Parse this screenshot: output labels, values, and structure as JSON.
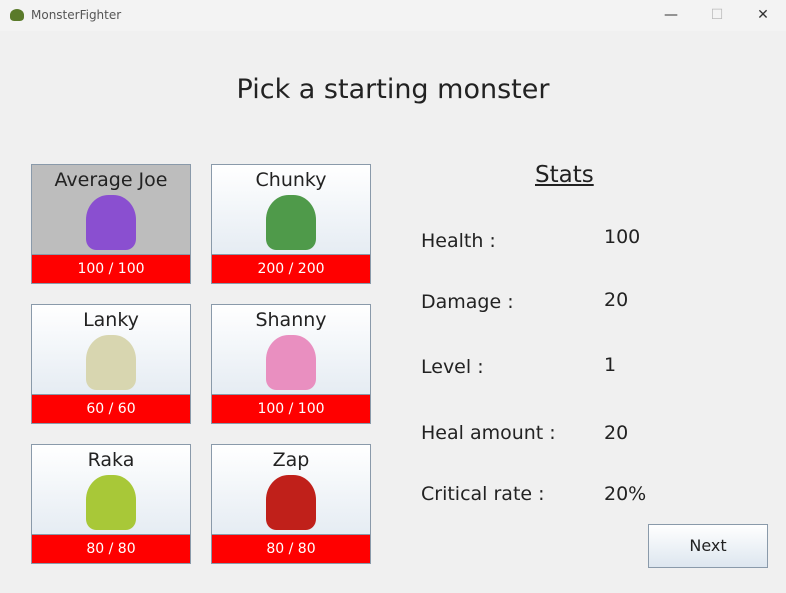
{
  "window": {
    "title": "MonsterFighter",
    "minimize": "—",
    "maximize": "☐",
    "close": "✕"
  },
  "heading": "Pick a starting monster",
  "monsters": [
    {
      "name": "Average Joe",
      "hp": "100 / 100",
      "color": "#8a4fd0",
      "selected": true
    },
    {
      "name": "Chunky",
      "hp": "200 / 200",
      "color": "#4f9a4a"
    },
    {
      "name": "Lanky",
      "hp": "60 / 60",
      "color": "#d8d6b0"
    },
    {
      "name": "Shanny",
      "hp": "100 / 100",
      "color": "#e98fc0"
    },
    {
      "name": "Raka",
      "hp": "80 / 80",
      "color": "#a8c838"
    },
    {
      "name": "Zap",
      "hp": "80 / 80",
      "color": "#c0201a"
    }
  ],
  "stats": {
    "title": "Stats",
    "rows": [
      {
        "label": "Health :",
        "value": "100"
      },
      {
        "label": "Damage :",
        "value": "20"
      },
      {
        "label": "Level :",
        "value": "1"
      },
      {
        "label": "Heal amount :",
        "value": "20"
      },
      {
        "label": "Critical rate :",
        "value": "20%"
      }
    ]
  },
  "next_label": "Next"
}
